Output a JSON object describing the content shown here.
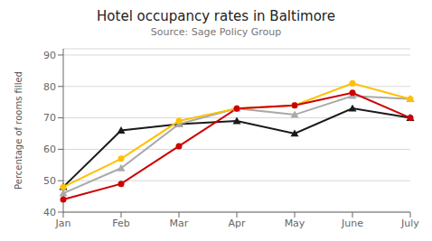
{
  "chart_data": {
    "type": "line",
    "title": "Hotel occupancy rates in Baltimore",
    "subtitle": "Source: Sage Policy Group",
    "ylabel": "Percentage of rooms filled",
    "categories": [
      "Jan",
      "Feb",
      "Mar",
      "Apr",
      "May",
      "June",
      "July"
    ],
    "series": [
      {
        "color": "#1a1a1a",
        "marker": "triangle",
        "values": [
          48,
          66,
          68,
          69,
          65,
          73,
          70
        ]
      },
      {
        "color": "#aaaaaa",
        "marker": "triangle",
        "values": [
          46,
          54,
          68,
          73,
          71,
          77,
          76
        ]
      },
      {
        "color": "#FFC000",
        "marker": "circle",
        "values": [
          48,
          57,
          69,
          73,
          74,
          81,
          76
        ]
      },
      {
        "color": "#CC0000",
        "marker": "circle",
        "values": [
          44,
          49,
          61,
          73,
          74,
          78,
          70
        ]
      }
    ],
    "ylim": [
      40,
      92
    ],
    "yticks": [
      40,
      50,
      60,
      70,
      80,
      90
    ],
    "grid": true
  }
}
